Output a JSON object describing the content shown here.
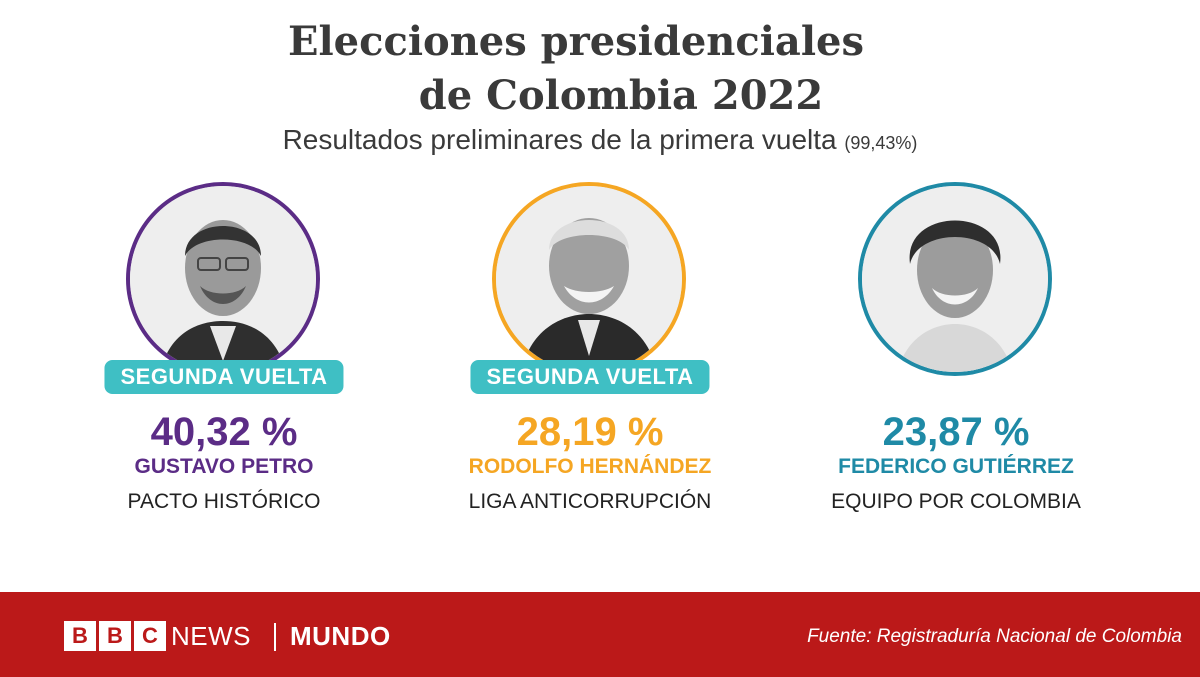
{
  "title_line1": "Elecciones presidenciales",
  "title_line2": "de Colombia 2022",
  "subtitle": "Resultados preliminares de la primera vuelta",
  "subtitle_count": "(99,43%)",
  "candidates": [
    {
      "percentage": "40,32 %",
      "name": "GUSTAVO PETRO",
      "party": "PACTO HISTÓRICO",
      "badge": "SEGUNDA VUELTA",
      "color": "#5b2c86"
    },
    {
      "percentage": "28,19 %",
      "name": "RODOLFO HERNÁNDEZ",
      "party": "LIGA ANTICORRUPCIÓN",
      "badge": "SEGUNDA VUELTA",
      "color": "#f5a623"
    },
    {
      "percentage": "23,87 %",
      "name": "FEDERICO GUTIÉRREZ",
      "party": "EQUIPO POR COLOMBIA",
      "color": "#1f8aa6"
    }
  ],
  "footer": {
    "logo_letters": [
      "B",
      "B",
      "C"
    ],
    "news": "NEWS",
    "mundo": "MUNDO",
    "source": "Fuente: Registraduría Nacional de Colombia"
  },
  "colors": {
    "badge_bg": "#3fbfc4",
    "footer_bg": "#bb1919"
  }
}
